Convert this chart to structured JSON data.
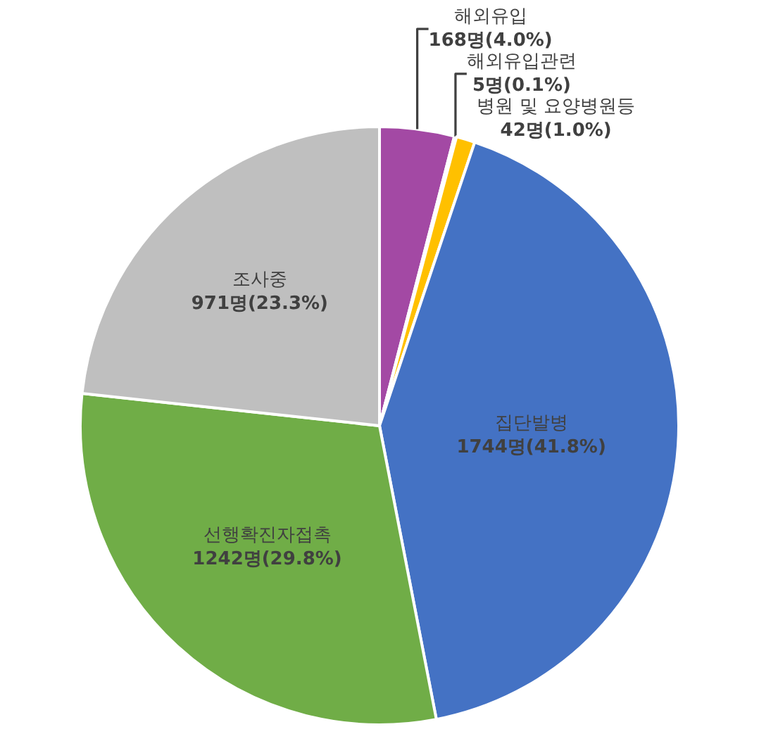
{
  "chart_data": {
    "type": "pie",
    "categories": [
      "해외유입",
      "해외유입관련",
      "병원 및 요양병원등",
      "집단발병",
      "선행확진자접촉",
      "조사중"
    ],
    "values": [
      168,
      5,
      42,
      1744,
      1242,
      971
    ],
    "value_labels": [
      "168명(4.0%)",
      "5명(0.1%)",
      "42명(1.0%)",
      "1744명(41.8%)",
      "1242명(29.8%)",
      "971명(23.3%)"
    ],
    "colors": [
      "#a349a4",
      "#e0e0e0",
      "#ffc000",
      "#4472c4",
      "#70ad47",
      "#bfbfbf"
    ],
    "legend": false
  }
}
